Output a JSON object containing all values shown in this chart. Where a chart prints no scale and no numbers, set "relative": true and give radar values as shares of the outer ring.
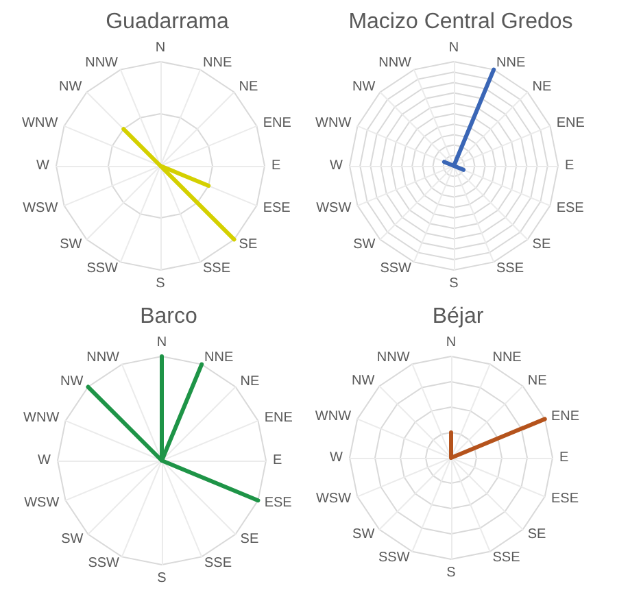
{
  "chart_data": [
    {
      "type": "radar",
      "title": "Guadarrama",
      "categories": [
        "N",
        "NNE",
        "NE",
        "ENE",
        "E",
        "ESE",
        "SE",
        "SSE",
        "S",
        "SSW",
        "SW",
        "WSW",
        "W",
        "WNW",
        "NW",
        "NNW"
      ],
      "relative": true,
      "grid": true,
      "marker": "none",
      "series": [
        {
          "color": "#d4d000",
          "values": [
            0,
            0,
            0,
            0,
            0,
            0.5,
            0,
            0,
            0,
            0,
            0,
            0,
            0,
            0,
            0.5,
            0
          ]
        },
        {
          "color": "#d4d000",
          "values": [
            0,
            0,
            0,
            0,
            0,
            0,
            1,
            0,
            0,
            0,
            0,
            0,
            0,
            0,
            0,
            0
          ]
        }
      ]
    },
    {
      "type": "radar",
      "title": "Macizo Central Gredos",
      "categories": [
        "N",
        "NNE",
        "NE",
        "ENE",
        "E",
        "ESE",
        "SE",
        "SSE",
        "S",
        "SSW",
        "SW",
        "WSW",
        "W",
        "WNW",
        "NW",
        "NNW"
      ],
      "relative": true,
      "grid": true,
      "marker": "none",
      "series": [
        {
          "color": "#3a66b6",
          "values": [
            0,
            1,
            0,
            0,
            0,
            0.1,
            0,
            0,
            0,
            0,
            0,
            0,
            0,
            0.1,
            0,
            0
          ]
        }
      ]
    },
    {
      "type": "radar",
      "title": "Barco",
      "categories": [
        "N",
        "NNE",
        "NE",
        "ENE",
        "E",
        "ESE",
        "SE",
        "SSE",
        "S",
        "SSW",
        "SW",
        "WSW",
        "W",
        "WNW",
        "NW",
        "NNW"
      ],
      "relative": true,
      "grid": true,
      "marker": "none",
      "series": [
        {
          "color": "#1e9447",
          "values": [
            1,
            0,
            0,
            0,
            0,
            1,
            0,
            0,
            0,
            0,
            0,
            0,
            0,
            0,
            1,
            0
          ]
        },
        {
          "color": "#1e9447",
          "values": [
            0,
            1,
            0,
            0,
            0,
            0,
            0,
            0,
            0,
            0,
            0,
            0,
            0,
            0,
            0,
            0
          ]
        }
      ]
    },
    {
      "type": "radar",
      "title": "Béjar",
      "categories": [
        "N",
        "NNE",
        "NE",
        "ENE",
        "E",
        "ESE",
        "SE",
        "SSE",
        "S",
        "SSW",
        "SW",
        "WSW",
        "W",
        "WNW",
        "NW",
        "NNW"
      ],
      "relative": true,
      "grid": true,
      "marker": "none",
      "series": [
        {
          "color": "#b5531c",
          "values": [
            0.25,
            0,
            0,
            1,
            0,
            0,
            0,
            0,
            0,
            0,
            0,
            0,
            0,
            0,
            0,
            0
          ]
        }
      ]
    }
  ]
}
